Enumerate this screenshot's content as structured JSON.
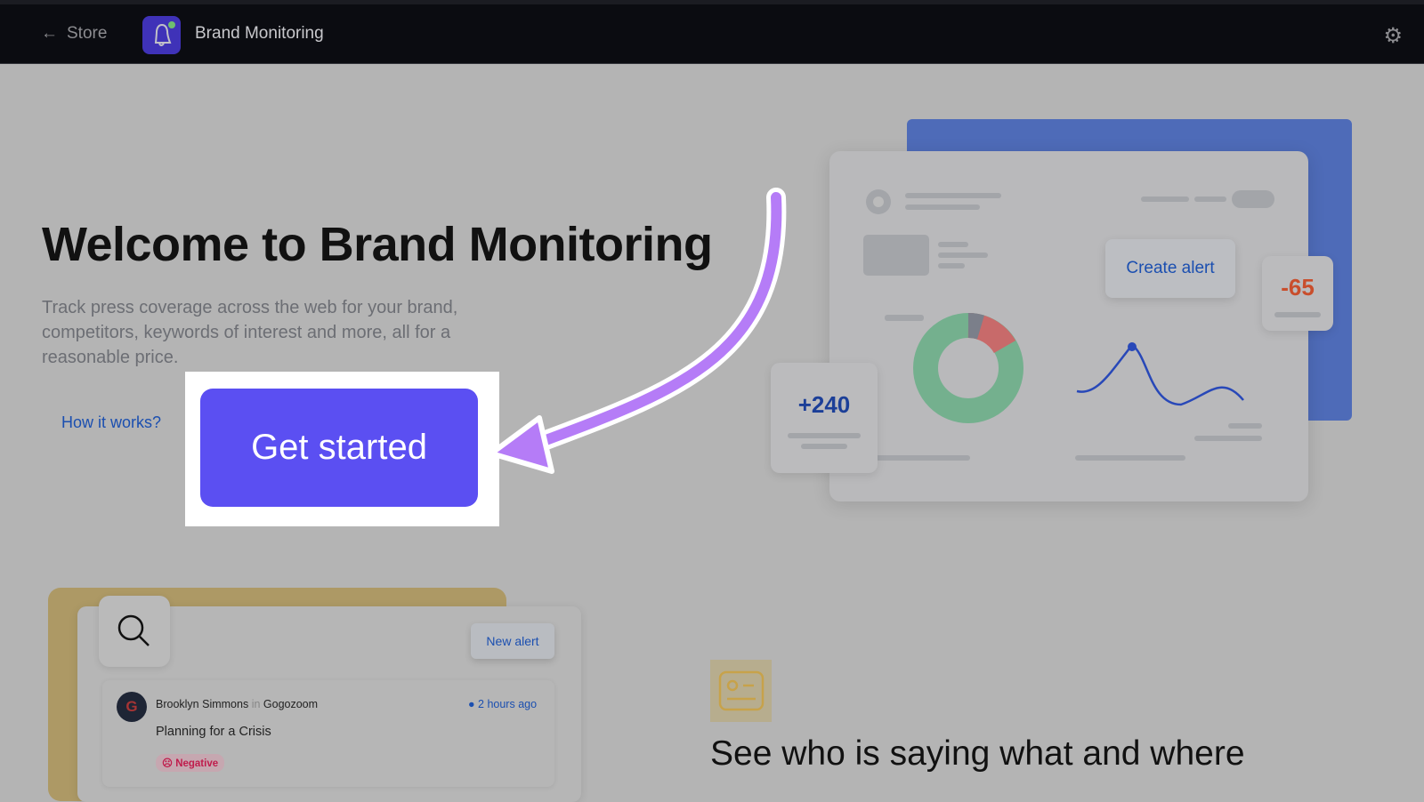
{
  "header": {
    "back_label": "Store",
    "app_name": "Brand Monitoring",
    "settings_icon": "gear-icon",
    "back_icon": "arrow-left-icon",
    "app_icon": "bell-icon"
  },
  "hero": {
    "title": "Welcome to Brand Monitoring",
    "description": "Track press coverage across the web for your brand, competitors, keywords of interest and more, all for a reasonable price.",
    "how_link": "How it works?",
    "cta": "Get started"
  },
  "illustration": {
    "create_alert": "Create alert",
    "negative_delta": "-65",
    "positive_delta": "+240"
  },
  "feed_preview": {
    "new_alert": "New alert",
    "author": "Brooklyn Simmons",
    "in": "in",
    "source": "Gogozoom",
    "time": "2 hours ago",
    "title": "Planning for a Crisis",
    "sentiment": "Negative",
    "avatar_letter": "G"
  },
  "feature": {
    "heading": "See who is saying what and where"
  },
  "colors": {
    "accent": "#5b4ff2",
    "arrow": "#b57cf7",
    "header_bg": "#0b0c11"
  }
}
